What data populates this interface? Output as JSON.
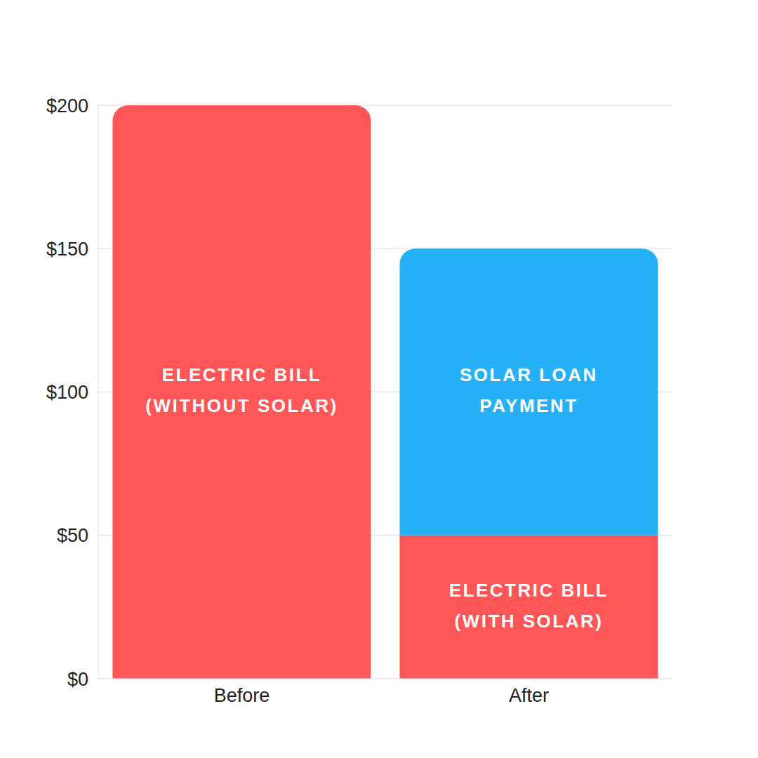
{
  "chart_data": {
    "type": "bar",
    "stacked": true,
    "grid": true,
    "categories": [
      "Before",
      "After"
    ],
    "series": [
      {
        "name": "ELECTRIC BILL (WITHOUT SOLAR)",
        "color": "#ff5757",
        "values": [
          200,
          null
        ]
      },
      {
        "name": "ELECTRIC BILL (WITH SOLAR)",
        "color": "#ff5757",
        "values": [
          null,
          50
        ]
      },
      {
        "name": "SOLAR LOAN PAYMENT",
        "color": "#26b1f7",
        "values": [
          null,
          100
        ]
      }
    ],
    "ylim": [
      0,
      200
    ],
    "yticks": [
      {
        "value": 0,
        "label": "$0"
      },
      {
        "value": 50,
        "label": "$50"
      },
      {
        "value": 100,
        "label": "$100"
      },
      {
        "value": 150,
        "label": "$150"
      },
      {
        "value": 200,
        "label": "$200"
      }
    ]
  }
}
